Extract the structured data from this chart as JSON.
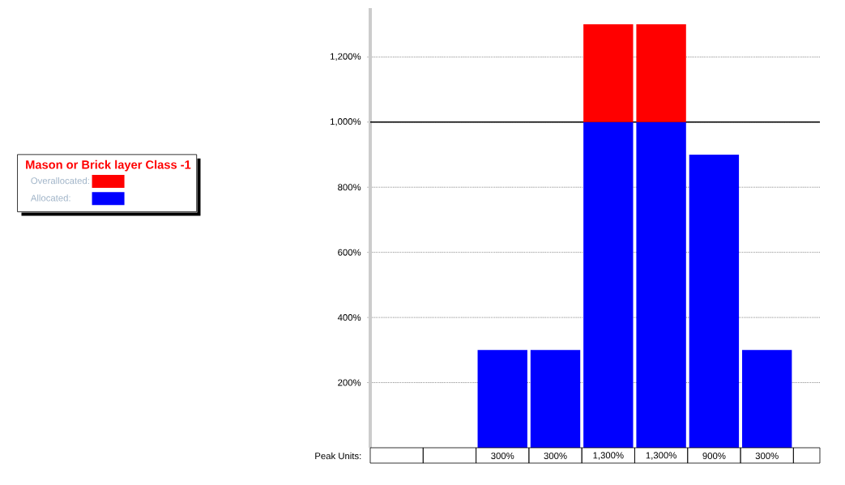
{
  "chart_data": {
    "type": "bar",
    "stacked": true,
    "categories": [
      null,
      null,
      null,
      null,
      null,
      null,
      null,
      null,
      null
    ],
    "series": [
      {
        "name": "Allocated:",
        "color": "#0000ff",
        "values": [
          null,
          null,
          300,
          300,
          1000,
          1000,
          900,
          300,
          null
        ]
      },
      {
        "name": "Overallocated:",
        "color": "#ff0000",
        "values": [
          null,
          null,
          null,
          null,
          300,
          300,
          null,
          null,
          null
        ]
      }
    ],
    "legend_title": "Mason or Brick layer Class -1",
    "legend": "left",
    "ylim": [
      0,
      1350
    ],
    "yticks": [
      {
        "value": 200,
        "label": "200%"
      },
      {
        "value": 400,
        "label": "400%"
      },
      {
        "value": 600,
        "label": "600%"
      },
      {
        "value": 800,
        "label": "800%"
      },
      {
        "value": 1000,
        "label": "1,000%"
      },
      {
        "value": 1200,
        "label": "1,200%"
      }
    ],
    "grid": "y",
    "ref_lines": [
      {
        "axis": "y",
        "value": 1000,
        "color": "#000000",
        "line_style": "solid"
      }
    ],
    "totals": [
      null,
      null,
      "300%",
      "300%",
      "1,300%",
      "1,300%",
      "900%",
      "300%",
      null
    ],
    "annotations": [
      "Peak Units:"
    ]
  }
}
